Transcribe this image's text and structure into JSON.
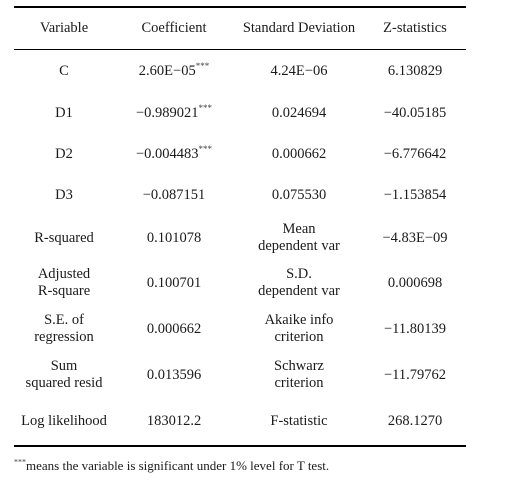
{
  "table": {
    "headers": [
      "Variable",
      "Coefficient",
      "Standard Deviation",
      "Z-statistics"
    ],
    "rows": [
      {
        "variable": [
          "C"
        ],
        "coefficient": "2.60E−05",
        "sig": "***",
        "std_or_label": [
          "4.24E−06"
        ],
        "z_or_value": "6.130829"
      },
      {
        "variable": [
          "D1"
        ],
        "coefficient": "−0.989021",
        "sig": "***",
        "std_or_label": [
          "0.024694"
        ],
        "z_or_value": "−40.05185"
      },
      {
        "variable": [
          "D2"
        ],
        "coefficient": "−0.004483",
        "sig": "***",
        "std_or_label": [
          "0.000662"
        ],
        "z_or_value": "−6.776642"
      },
      {
        "variable": [
          "D3"
        ],
        "coefficient": "−0.087151",
        "sig": "",
        "std_or_label": [
          "0.075530"
        ],
        "z_or_value": "−1.153854"
      },
      {
        "variable": [
          "R-squared"
        ],
        "coefficient": "0.101078",
        "sig": "",
        "std_or_label": [
          "Mean",
          "dependent var"
        ],
        "z_or_value": "−4.83E−09"
      },
      {
        "variable": [
          "Adjusted",
          "R-square"
        ],
        "coefficient": "0.100701",
        "sig": "",
        "std_or_label": [
          "S.D.",
          "dependent var"
        ],
        "z_or_value": "0.000698"
      },
      {
        "variable": [
          "S.E. of",
          "regression"
        ],
        "coefficient": "0.000662",
        "sig": "",
        "std_or_label": [
          "Akaike info",
          "criterion"
        ],
        "z_or_value": "−11.80139"
      },
      {
        "variable": [
          "Sum",
          "squared resid"
        ],
        "coefficient": "0.013596",
        "sig": "",
        "std_or_label": [
          "Schwarz",
          "criterion"
        ],
        "z_or_value": "−11.79762"
      },
      {
        "variable": [
          "Log likelihood"
        ],
        "coefficient": "183012.2",
        "sig": "",
        "std_or_label": [
          "F-statistic"
        ],
        "z_or_value": "268.1270"
      }
    ]
  },
  "note": {
    "marker": "***",
    "text": "means the variable is significant under 1% level for T test."
  }
}
